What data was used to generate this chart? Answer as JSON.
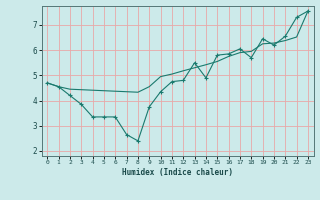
{
  "xlabel": "Humidex (Indice chaleur)",
  "bg_color": "#cceaea",
  "grid_color": "#e8a8a8",
  "line_color": "#1a7a6e",
  "xlim": [
    -0.5,
    23.5
  ],
  "ylim": [
    1.8,
    7.75
  ],
  "yticks": [
    2,
    3,
    4,
    5,
    6,
    7
  ],
  "xticks": [
    0,
    1,
    2,
    3,
    4,
    5,
    6,
    7,
    8,
    9,
    10,
    11,
    12,
    13,
    14,
    15,
    16,
    17,
    18,
    19,
    20,
    21,
    22,
    23
  ],
  "line1_x": [
    0,
    1,
    2,
    3,
    4,
    5,
    6,
    7,
    8,
    9,
    10,
    11,
    12,
    13,
    14,
    15,
    16,
    17,
    18,
    19,
    20,
    21,
    22,
    23
  ],
  "line1_y": [
    4.7,
    4.55,
    4.2,
    3.85,
    3.35,
    3.35,
    3.35,
    2.65,
    2.4,
    3.75,
    4.35,
    4.75,
    4.8,
    5.5,
    4.9,
    5.8,
    5.85,
    6.05,
    5.7,
    6.45,
    6.2,
    6.55,
    7.3,
    7.55
  ],
  "line2_x": [
    0,
    1,
    2,
    3,
    4,
    5,
    6,
    7,
    8,
    9,
    10,
    11,
    12,
    13,
    14,
    15,
    16,
    17,
    18,
    19,
    20,
    21,
    22,
    23
  ],
  "line2_y": [
    4.7,
    4.55,
    4.45,
    4.43,
    4.41,
    4.39,
    4.37,
    4.35,
    4.33,
    4.55,
    4.95,
    5.05,
    5.18,
    5.3,
    5.42,
    5.55,
    5.75,
    5.9,
    5.95,
    6.25,
    6.28,
    6.38,
    6.52,
    7.55
  ]
}
